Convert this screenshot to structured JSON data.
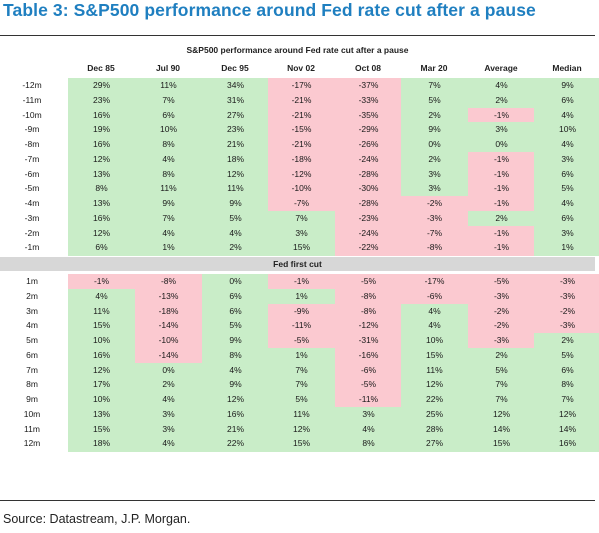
{
  "title": "Table 3: S&P500 performance around Fed rate cut after a pause",
  "table": {
    "caption": "S&P500 performance around Fed rate cut after a pause",
    "columns": [
      "Dec 85",
      "Jul 90",
      "Dec 95",
      "Nov 02",
      "Oct 08",
      "Mar 20",
      "Average",
      "Median"
    ],
    "separator_label": "Fed first cut",
    "before_rows": [
      {
        "label": "-12m",
        "values": [
          "29%",
          "11%",
          "34%",
          "-17%",
          "-37%",
          "7%",
          "4%",
          "9%"
        ]
      },
      {
        "label": "-11m",
        "values": [
          "23%",
          "7%",
          "31%",
          "-21%",
          "-33%",
          "5%",
          "2%",
          "6%"
        ]
      },
      {
        "label": "-10m",
        "values": [
          "16%",
          "6%",
          "27%",
          "-21%",
          "-35%",
          "2%",
          "-1%",
          "4%"
        ]
      },
      {
        "label": "-9m",
        "values": [
          "19%",
          "10%",
          "23%",
          "-15%",
          "-29%",
          "9%",
          "3%",
          "10%"
        ]
      },
      {
        "label": "-8m",
        "values": [
          "16%",
          "8%",
          "21%",
          "-21%",
          "-26%",
          "0%",
          "0%",
          "4%"
        ]
      },
      {
        "label": "-7m",
        "values": [
          "12%",
          "4%",
          "18%",
          "-18%",
          "-24%",
          "2%",
          "-1%",
          "3%"
        ]
      },
      {
        "label": "-6m",
        "values": [
          "13%",
          "8%",
          "12%",
          "-12%",
          "-28%",
          "3%",
          "-1%",
          "6%"
        ]
      },
      {
        "label": "-5m",
        "values": [
          "8%",
          "11%",
          "11%",
          "-10%",
          "-30%",
          "3%",
          "-1%",
          "5%"
        ]
      },
      {
        "label": "-4m",
        "values": [
          "13%",
          "9%",
          "9%",
          "-7%",
          "-28%",
          "-2%",
          "-1%",
          "4%"
        ]
      },
      {
        "label": "-3m",
        "values": [
          "16%",
          "7%",
          "5%",
          "7%",
          "-23%",
          "-3%",
          "2%",
          "6%"
        ]
      },
      {
        "label": "-2m",
        "values": [
          "12%",
          "4%",
          "4%",
          "3%",
          "-24%",
          "-7%",
          "-1%",
          "3%"
        ]
      },
      {
        "label": "-1m",
        "values": [
          "6%",
          "1%",
          "2%",
          "15%",
          "-22%",
          "-8%",
          "-1%",
          "1%"
        ]
      }
    ],
    "after_rows": [
      {
        "label": "1m",
        "values": [
          "-1%",
          "-8%",
          "0%",
          "-1%",
          "-5%",
          "-17%",
          "-5%",
          "-3%"
        ]
      },
      {
        "label": "2m",
        "values": [
          "4%",
          "-13%",
          "6%",
          "1%",
          "-8%",
          "-6%",
          "-3%",
          "-3%"
        ]
      },
      {
        "label": "3m",
        "values": [
          "11%",
          "-18%",
          "6%",
          "-9%",
          "-8%",
          "4%",
          "-2%",
          "-2%"
        ]
      },
      {
        "label": "4m",
        "values": [
          "15%",
          "-14%",
          "5%",
          "-11%",
          "-12%",
          "4%",
          "-2%",
          "-3%"
        ]
      },
      {
        "label": "5m",
        "values": [
          "10%",
          "-10%",
          "9%",
          "-5%",
          "-31%",
          "10%",
          "-3%",
          "2%"
        ]
      },
      {
        "label": "6m",
        "values": [
          "16%",
          "-14%",
          "8%",
          "1%",
          "-16%",
          "15%",
          "2%",
          "5%"
        ]
      },
      {
        "label": "7m",
        "values": [
          "12%",
          "0%",
          "4%",
          "7%",
          "-6%",
          "11%",
          "5%",
          "6%"
        ]
      },
      {
        "label": "8m",
        "values": [
          "17%",
          "2%",
          "9%",
          "7%",
          "-5%",
          "12%",
          "7%",
          "8%"
        ]
      },
      {
        "label": "9m",
        "values": [
          "10%",
          "4%",
          "12%",
          "5%",
          "-11%",
          "22%",
          "7%",
          "7%"
        ]
      },
      {
        "label": "10m",
        "values": [
          "13%",
          "3%",
          "16%",
          "11%",
          "3%",
          "25%",
          "12%",
          "12%"
        ]
      },
      {
        "label": "11m",
        "values": [
          "15%",
          "3%",
          "21%",
          "12%",
          "4%",
          "28%",
          "14%",
          "14%"
        ]
      },
      {
        "label": "12m",
        "values": [
          "18%",
          "4%",
          "22%",
          "15%",
          "8%",
          "27%",
          "15%",
          "16%"
        ]
      }
    ]
  },
  "source": "Source: Datastream, J.P. Morgan.",
  "colors": {
    "title": "#1f7fc0",
    "positive_fill": "#c9edc8",
    "negative_fill": "#fbc9d0",
    "separator_fill": "#d7d7d7"
  }
}
